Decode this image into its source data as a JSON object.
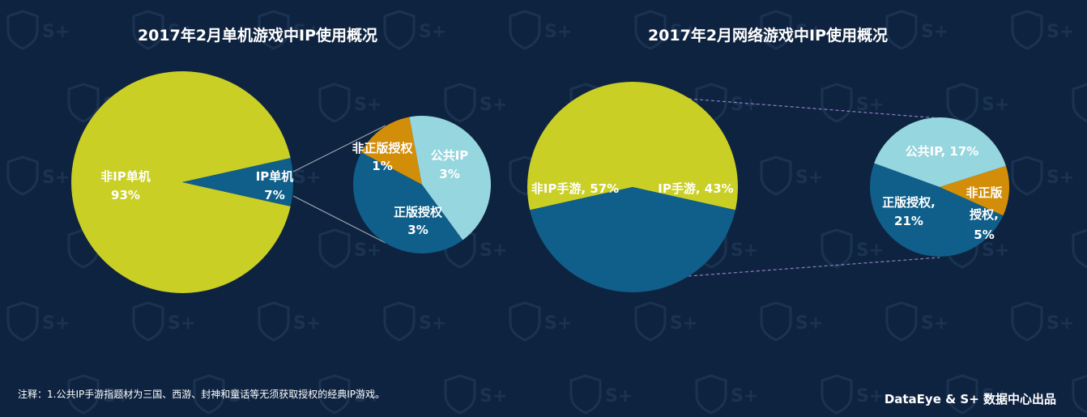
{
  "colors": {
    "background": "#0e2340",
    "lime": "#c9cf24",
    "navy_blue": "#0f5f8a",
    "light_cyan": "#95d6df",
    "orange": "#d28e08",
    "connector": "#9aa5b1"
  },
  "watermark_text": "S+",
  "chart_data": [
    {
      "type": "pie",
      "title": "2017年2月单机游戏中IP使用概况",
      "slices": [
        {
          "label": "非IP单机",
          "value_label": "93%",
          "value": 93
        },
        {
          "label": "IP单机",
          "value_label": "7%",
          "value": 7
        }
      ]
    },
    {
      "type": "pie",
      "slices": [
        {
          "label": "非正版授权",
          "value_label": "1%",
          "value": 1
        },
        {
          "label": "公共IP",
          "value_label": "3%",
          "value": 3
        },
        {
          "label": "正版授权",
          "value_label": "3%",
          "value": 3
        }
      ]
    },
    {
      "type": "pie",
      "title": "2017年2月网络游戏中IP使用概况",
      "slices": [
        {
          "label": "非IP手游, 57%",
          "value": 57
        },
        {
          "label": "IP手游, 43%",
          "value": 43
        }
      ]
    },
    {
      "type": "pie",
      "slices": [
        {
          "label": "公共IP, 17%",
          "value": 17
        },
        {
          "label_lines": [
            "非正版",
            "授权,",
            "5%"
          ],
          "value": 5
        },
        {
          "label_lines": [
            "正版授权,",
            "21%"
          ],
          "value": 21
        }
      ]
    }
  ],
  "footer": {
    "note": "注释：1.公共IP手游指题材为三国、西游、封神和童话等无须获取授权的经典IP游戏。",
    "credit": "DataEye & S+ 数据中心出品"
  }
}
